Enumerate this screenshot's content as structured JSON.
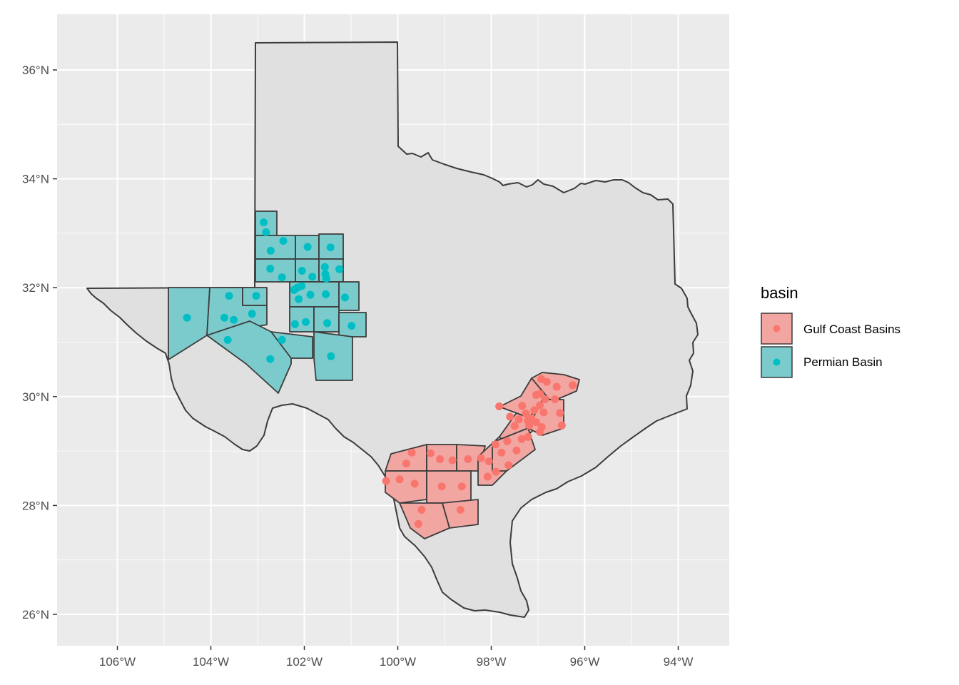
{
  "chart_data": {
    "type": "scatter",
    "subtype": "choropleth-map",
    "region": "Texas",
    "x_axis": {
      "range": [
        -107.3,
        -93.0
      ],
      "ticks": [
        -106,
        -104,
        -102,
        -100,
        -98,
        -96,
        -94
      ],
      "tick_labels": [
        "106°W",
        "104°W",
        "102°W",
        "100°W",
        "98°W",
        "96°W",
        "94°W"
      ]
    },
    "y_axis": {
      "range": [
        25.5,
        37.0
      ],
      "ticks": [
        26,
        28,
        30,
        32,
        34,
        36
      ],
      "tick_labels": [
        "26°N",
        "28°N",
        "30°N",
        "32°N",
        "34°N",
        "36°N"
      ]
    },
    "grid": true,
    "legend": {
      "title": "basin",
      "placement": "right",
      "entries": [
        {
          "label": "Gulf Coast Basins",
          "fill": "#F2A6A2",
          "point": "#F8766D"
        },
        {
          "label": "Permian Basin",
          "fill": "#7CCBCC",
          "point": "#00BFC4"
        }
      ]
    },
    "colors": {
      "panel": "#EBEBEB",
      "grid": "#FFFFFF",
      "state_fill": "#E0E0E0",
      "border": "#3C3C3C",
      "gulf_point": "#F8766D",
      "permian_point": "#00BFC4"
    },
    "series": [
      {
        "name": "Gulf Coast Basins",
        "points": [
          [
            -100.25,
            28.45
          ],
          [
            -99.96,
            28.48
          ],
          [
            -99.82,
            28.77
          ],
          [
            -99.7,
            28.97
          ],
          [
            -99.3,
            28.96
          ],
          [
            -99.1,
            28.85
          ],
          [
            -98.83,
            28.83
          ],
          [
            -98.5,
            28.85
          ],
          [
            -98.22,
            28.87
          ],
          [
            -99.64,
            28.4
          ],
          [
            -99.06,
            28.35
          ],
          [
            -98.63,
            28.35
          ],
          [
            -98.08,
            28.53
          ],
          [
            -99.49,
            27.92
          ],
          [
            -98.66,
            27.92
          ],
          [
            -99.56,
            27.66
          ],
          [
            -98.05,
            28.81
          ],
          [
            -97.9,
            28.62
          ],
          [
            -97.78,
            28.97
          ],
          [
            -97.63,
            28.74
          ],
          [
            -97.46,
            29.01
          ],
          [
            -97.35,
            29.22
          ],
          [
            -97.21,
            29.26
          ],
          [
            -96.96,
            29.35
          ],
          [
            -97.91,
            29.12
          ],
          [
            -97.66,
            29.18
          ],
          [
            -97.83,
            29.82
          ],
          [
            -97.6,
            29.63
          ],
          [
            -97.41,
            29.58
          ],
          [
            -97.26,
            29.69
          ],
          [
            -97.5,
            29.46
          ],
          [
            -97.19,
            29.47
          ],
          [
            -97.04,
            29.53
          ],
          [
            -96.92,
            29.44
          ],
          [
            -97.08,
            29.75
          ],
          [
            -96.96,
            29.84
          ],
          [
            -96.85,
            29.95
          ],
          [
            -96.96,
            30.05
          ],
          [
            -96.93,
            30.32
          ],
          [
            -96.81,
            30.27
          ],
          [
            -96.6,
            30.18
          ],
          [
            -96.26,
            30.21
          ],
          [
            -96.53,
            29.7
          ],
          [
            -96.49,
            29.47
          ],
          [
            -96.64,
            29.95
          ],
          [
            -97.04,
            30.03
          ],
          [
            -97.34,
            29.83
          ],
          [
            -97.22,
            29.56
          ],
          [
            -96.88,
            29.71
          ],
          [
            -97.14,
            29.6
          ]
        ]
      },
      {
        "name": "Permian Basin",
        "points": [
          [
            -102.87,
            33.2
          ],
          [
            -102.82,
            33.02
          ],
          [
            -102.45,
            32.86
          ],
          [
            -102.72,
            32.68
          ],
          [
            -101.93,
            32.75
          ],
          [
            -101.44,
            32.74
          ],
          [
            -102.73,
            32.35
          ],
          [
            -102.48,
            32.19
          ],
          [
            -102.05,
            32.31
          ],
          [
            -101.56,
            32.38
          ],
          [
            -101.25,
            32.34
          ],
          [
            -101.55,
            32.25
          ],
          [
            -101.83,
            32.2
          ],
          [
            -101.53,
            32.17
          ],
          [
            -102.15,
            32.0
          ],
          [
            -102.22,
            31.96
          ],
          [
            -102.06,
            32.03
          ],
          [
            -101.87,
            31.87
          ],
          [
            -101.54,
            31.88
          ],
          [
            -101.13,
            31.82
          ],
          [
            -103.61,
            31.85
          ],
          [
            -103.03,
            31.85
          ],
          [
            -102.12,
            31.79
          ],
          [
            -104.51,
            31.45
          ],
          [
            -103.71,
            31.45
          ],
          [
            -103.51,
            31.41
          ],
          [
            -103.12,
            31.52
          ],
          [
            -102.2,
            31.33
          ],
          [
            -101.97,
            31.37
          ],
          [
            -101.51,
            31.35
          ],
          [
            -100.99,
            31.3
          ],
          [
            -103.64,
            31.04
          ],
          [
            -102.48,
            31.04
          ],
          [
            -102.73,
            30.69
          ],
          [
            -101.43,
            30.74
          ]
        ]
      }
    ]
  }
}
